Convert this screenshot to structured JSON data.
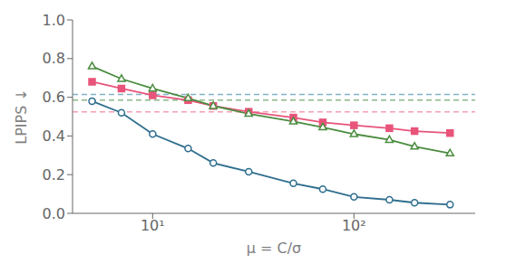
{
  "chart_data": {
    "type": "line",
    "log": "x",
    "xlabel": "μ = C/σ",
    "ylabel": "LPIPS ↓",
    "x": [
      5,
      7,
      10,
      15,
      20,
      30,
      50,
      70,
      100,
      150,
      200,
      300
    ],
    "series": [
      {
        "color": "#2e6e8e",
        "marker": "circle-open",
        "line_style": "solid",
        "values": [
          0.58,
          0.52,
          0.41,
          0.335,
          0.26,
          0.215,
          0.155,
          0.125,
          0.085,
          0.07,
          0.055,
          0.045
        ]
      },
      {
        "color": "#e8547a",
        "marker": "square",
        "line_style": "solid",
        "values": [
          0.68,
          0.645,
          0.61,
          0.585,
          0.555,
          0.525,
          0.495,
          0.47,
          0.455,
          0.44,
          0.425,
          0.415
        ]
      },
      {
        "color": "#4a8c3f",
        "marker": "triangle-open",
        "line_style": "solid",
        "values": [
          0.76,
          0.695,
          0.645,
          0.595,
          0.555,
          0.515,
          0.475,
          0.445,
          0.41,
          0.38,
          0.345,
          0.31
        ]
      }
    ],
    "hlines": [
      {
        "value": 0.615,
        "color": "#7fb3c8",
        "line_style": "dashed"
      },
      {
        "value": 0.585,
        "color": "#8ab88a",
        "line_style": "dashed"
      },
      {
        "value": 0.525,
        "color": "#f5a0b0",
        "line_style": "dashed"
      }
    ],
    "xlim": [
      4,
      400
    ],
    "ylim": [
      0,
      1
    ],
    "xticks": [
      {
        "value": 10,
        "label": "10¹"
      },
      {
        "value": 100,
        "label": "10²"
      }
    ],
    "yticks": [
      {
        "value": 0,
        "label": "0.0"
      },
      0.2,
      0.4,
      0.6,
      0.8,
      {
        "value": 1,
        "label": "1.0"
      }
    ],
    "grid": false
  }
}
